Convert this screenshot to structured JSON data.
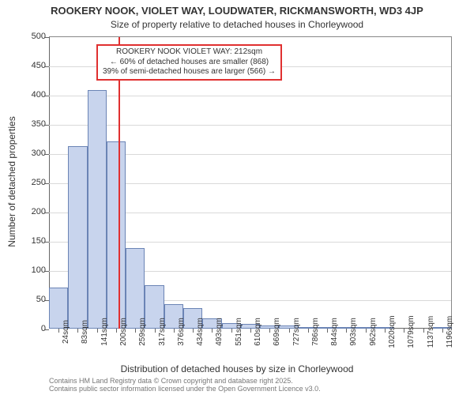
{
  "title_main": "ROOKERY NOOK, VIOLET WAY, LOUDWATER, RICKMANSWORTH, WD3 4JP",
  "title_sub": "Size of property relative to detached houses in Chorleywood",
  "ylabel": "Number of detached properties",
  "xlabel": "Distribution of detached houses by size in Chorleywood",
  "footer_l1": "Contains HM Land Registry data © Crown copyright and database right 2025.",
  "footer_l2": "Contains public sector information licensed under the Open Government Licence v3.0.",
  "annotation": {
    "l1": "ROOKERY NOOK VIOLET WAY: 212sqm",
    "l2": "← 60% of detached houses are smaller (868)",
    "l3": "39% of semi-detached houses are larger (566) →"
  },
  "chart": {
    "type": "histogram",
    "ylim": [
      0,
      500
    ],
    "ytick_step": 50,
    "bar_fill": "#c8d4ed",
    "bar_stroke": "#6b84b5",
    "grid_color": "#d9d9d9",
    "ref_line_color": "#e03030",
    "ref_line_x": 212,
    "x_start": 0,
    "bin_width": 58.6,
    "n_bins": 21,
    "xtick_labels": [
      "24sqm",
      "83sqm",
      "141sqm",
      "200sqm",
      "259sqm",
      "317sqm",
      "376sqm",
      "434sqm",
      "493sqm",
      "551sqm",
      "610sqm",
      "669sqm",
      "727sqm",
      "786sqm",
      "844sqm",
      "903sqm",
      "962sqm",
      "1020sqm",
      "1079sqm",
      "1137sqm",
      "1196sqm"
    ],
    "values": [
      70,
      312,
      408,
      320,
      138,
      75,
      42,
      35,
      18,
      10,
      8,
      6,
      5,
      3,
      2,
      2,
      2,
      1,
      0,
      0,
      1
    ],
    "title_fontsize": 13,
    "sub_fontsize": 12,
    "label_fontsize": 12,
    "tick_fontsize": 11,
    "background_color": "#ffffff"
  }
}
